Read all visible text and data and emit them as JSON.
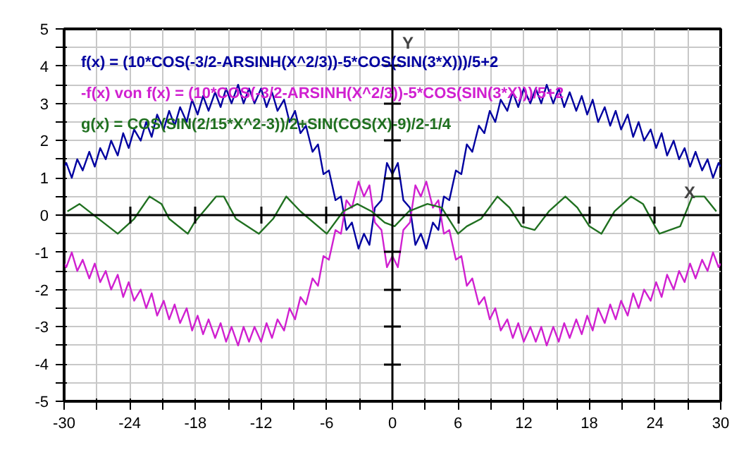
{
  "chart_data": {
    "type": "line",
    "x": [
      -30,
      -29.8,
      -29.3,
      -28.8,
      -28.3,
      -27.7,
      -27.2,
      -26.7,
      -26.2,
      -25.7,
      -25.1,
      -24.6,
      -24.1,
      -23.6,
      -23,
      -22.5,
      -22,
      -21.5,
      -20.9,
      -20.4,
      -19.9,
      -19.4,
      -18.8,
      -18.3,
      -17.8,
      -17.3,
      -16.8,
      -16.2,
      -15.7,
      -15.2,
      -14.7,
      -14.1,
      -13.6,
      -13.1,
      -12.6,
      -12,
      -11.5,
      -11,
      -10.5,
      -9.9,
      -9.4,
      -8.9,
      -8.4,
      -7.9,
      -7.3,
      -6.8,
      -6.3,
      -5.8,
      -5.2,
      -4.7,
      -4.2,
      -3.7,
      -3.1,
      -2.6,
      -2.1,
      -1.6,
      -1,
      -0.5,
      0,
      0.5,
      1,
      1.6,
      2.1,
      2.6,
      3.1,
      3.7,
      4.2,
      4.7,
      5.2,
      5.8,
      6.3,
      6.8,
      7.3,
      7.9,
      8.4,
      8.9,
      9.4,
      9.9,
      10.5,
      11,
      11.5,
      12,
      12.6,
      13.1,
      13.6,
      14.1,
      14.7,
      15.2,
      15.7,
      16.2,
      16.8,
      17.3,
      17.8,
      18.3,
      18.8,
      19.4,
      19.9,
      20.4,
      20.9,
      21.5,
      22,
      22.5,
      23,
      23.6,
      24.1,
      24.6,
      25.1,
      25.7,
      26.2,
      26.7,
      27.2,
      27.7,
      28.3,
      28.8,
      29.3,
      29.8,
      30
    ],
    "series": [
      {
        "name": "f(x) = (10*COS(-3/2-ARSINH(X^2/3))-5*COS(SIN(3*X)))/5+2",
        "color": "#0000a0",
        "values": [
          1.3,
          1.4,
          1.0,
          1.5,
          1.2,
          1.7,
          1.3,
          1.8,
          1.5,
          2.0,
          1.6,
          2.2,
          1.8,
          2.3,
          2.0,
          2.5,
          2.1,
          2.7,
          2.3,
          2.8,
          2.4,
          2.9,
          2.5,
          3.1,
          2.7,
          3.2,
          2.8,
          3.3,
          2.9,
          3.4,
          3.0,
          3.5,
          3.0,
          3.4,
          3.0,
          3.4,
          2.9,
          3.3,
          2.8,
          3.1,
          2.5,
          2.8,
          2.2,
          2.4,
          1.7,
          1.9,
          1.1,
          1.2,
          0.4,
          0.5,
          -0.4,
          -0.2,
          -0.9,
          -0.5,
          -0.8,
          0.2,
          0.4,
          1.4,
          1.1,
          1.4,
          0.4,
          0.2,
          -0.8,
          -0.5,
          -0.9,
          -0.2,
          -0.4,
          0.5,
          0.4,
          1.2,
          1.1,
          1.9,
          1.7,
          2.4,
          2.2,
          2.8,
          2.5,
          3.1,
          2.8,
          3.3,
          2.9,
          3.4,
          3.0,
          3.4,
          3.0,
          3.5,
          3.0,
          3.4,
          2.9,
          3.3,
          2.8,
          3.2,
          2.7,
          3.1,
          2.5,
          2.9,
          2.4,
          2.8,
          2.3,
          2.7,
          2.1,
          2.5,
          2.0,
          2.3,
          1.8,
          2.2,
          1.6,
          2.0,
          1.5,
          1.8,
          1.3,
          1.7,
          1.2,
          1.5,
          1.0,
          1.4,
          1.3
        ]
      },
      {
        "name": "-f(x) von f(x) = (10*COS(-3/2-ARSINH(X^2/3))-5*COS(SIN(3*X)))/5+2",
        "color": "#d020d0",
        "values": [
          -1.3,
          -1.4,
          -1.0,
          -1.5,
          -1.2,
          -1.7,
          -1.3,
          -1.8,
          -1.5,
          -2.0,
          -1.6,
          -2.2,
          -1.8,
          -2.3,
          -2.0,
          -2.5,
          -2.1,
          -2.7,
          -2.3,
          -2.8,
          -2.4,
          -2.9,
          -2.5,
          -3.1,
          -2.7,
          -3.2,
          -2.8,
          -3.3,
          -2.9,
          -3.4,
          -3.0,
          -3.5,
          -3.0,
          -3.4,
          -3.0,
          -3.4,
          -2.9,
          -3.3,
          -2.8,
          -3.1,
          -2.5,
          -2.8,
          -2.2,
          -2.4,
          -1.7,
          -1.9,
          -1.1,
          -1.2,
          -0.4,
          -0.5,
          0.4,
          0.2,
          0.9,
          0.5,
          0.8,
          -0.2,
          -0.4,
          -1.4,
          -1.1,
          -1.4,
          -0.4,
          -0.2,
          0.8,
          0.5,
          0.9,
          0.2,
          0.4,
          -0.5,
          -0.4,
          -1.2,
          -1.1,
          -1.9,
          -1.7,
          -2.4,
          -2.2,
          -2.8,
          -2.5,
          -3.1,
          -2.8,
          -3.3,
          -2.9,
          -3.4,
          -3.0,
          -3.4,
          -3.0,
          -3.5,
          -3.0,
          -3.4,
          -2.9,
          -3.3,
          -2.8,
          -3.2,
          -2.7,
          -3.1,
          -2.5,
          -2.9,
          -2.4,
          -2.8,
          -2.3,
          -2.7,
          -2.1,
          -2.5,
          -2.0,
          -2.3,
          -1.8,
          -2.2,
          -1.6,
          -2.0,
          -1.5,
          -1.8,
          -1.3,
          -1.7,
          -1.2,
          -1.5,
          -1.0,
          -1.4,
          -1.3
        ]
      },
      {
        "name": "g(x) = COS(SIN(2/15*X^2-3))/2+SIN(COS(X)-9)/2-1/4",
        "color": "#207020",
        "x": [
          -29.7,
          -28.6,
          -25.1,
          -23.6,
          -22.2,
          -21.1,
          -20.4,
          -18.7,
          -18.1,
          -16.1,
          -15.4,
          -14.3,
          -12.2,
          -10.9,
          -9.7,
          -8.4,
          -6.0,
          -4.5,
          -3.2,
          -1.9,
          -0.7,
          0.2,
          1.5,
          3.2,
          4.5,
          6.0,
          6.8,
          8.1,
          9.6,
          10.7,
          11.8,
          13.0,
          14.3,
          15.8,
          16.9,
          18.0,
          19.1,
          20.3,
          21.8,
          22.9,
          24.0,
          24.4,
          26.3,
          27.4,
          28.5,
          29.6
        ],
        "values": [
          0.1,
          0.3,
          -0.5,
          -0.1,
          0.5,
          0.3,
          -0.1,
          -0.5,
          -0.2,
          0.5,
          0.5,
          -0.1,
          -0.5,
          -0.1,
          0.5,
          0.1,
          -0.5,
          0.1,
          0.3,
          0.1,
          -0.2,
          -0.3,
          0.1,
          0.3,
          0.2,
          -0.5,
          -0.3,
          -0.1,
          0.5,
          0.2,
          -0.3,
          -0.4,
          0.1,
          0.5,
          0.2,
          -0.3,
          -0.5,
          0.1,
          0.5,
          0.3,
          -0.3,
          -0.5,
          -0.3,
          0.5,
          0.5,
          0.1
        ]
      }
    ],
    "xlim": [
      -30,
      30
    ],
    "ylim": [
      -5,
      5
    ],
    "xticks": [
      -30,
      {
        "value": -27,
        "label": null
      },
      -24,
      {
        "value": -21,
        "label": null
      },
      -18,
      {
        "value": -15,
        "label": null
      },
      -12,
      {
        "value": -9,
        "label": null
      },
      -6,
      {
        "value": -3,
        "label": null
      },
      0,
      {
        "value": 3,
        "label": null
      },
      6,
      {
        "value": 9,
        "label": null
      },
      12,
      {
        "value": 15,
        "label": null
      },
      18,
      {
        "value": 21,
        "label": null
      },
      24,
      {
        "value": 27,
        "label": null
      },
      30
    ],
    "yticks": [
      -5,
      {
        "value": -4.5,
        "label": null
      },
      -4,
      {
        "value": -3.5,
        "label": null
      },
      -3,
      {
        "value": -2.5,
        "label": null
      },
      -2,
      {
        "value": -1.5,
        "label": null
      },
      -1,
      {
        "value": -0.5,
        "label": null
      },
      0,
      {
        "value": 0.5,
        "label": null
      },
      1,
      {
        "value": 1.5,
        "label": null
      },
      2,
      {
        "value": 2.5,
        "label": null
      },
      3,
      {
        "value": 3.5,
        "label": null
      },
      4,
      {
        "value": 4.5,
        "label": null
      },
      5
    ],
    "annotations": [
      "Y",
      "X"
    ],
    "grid": true,
    "legend": "top left",
    "marker": "none",
    "line_style": "solid"
  }
}
